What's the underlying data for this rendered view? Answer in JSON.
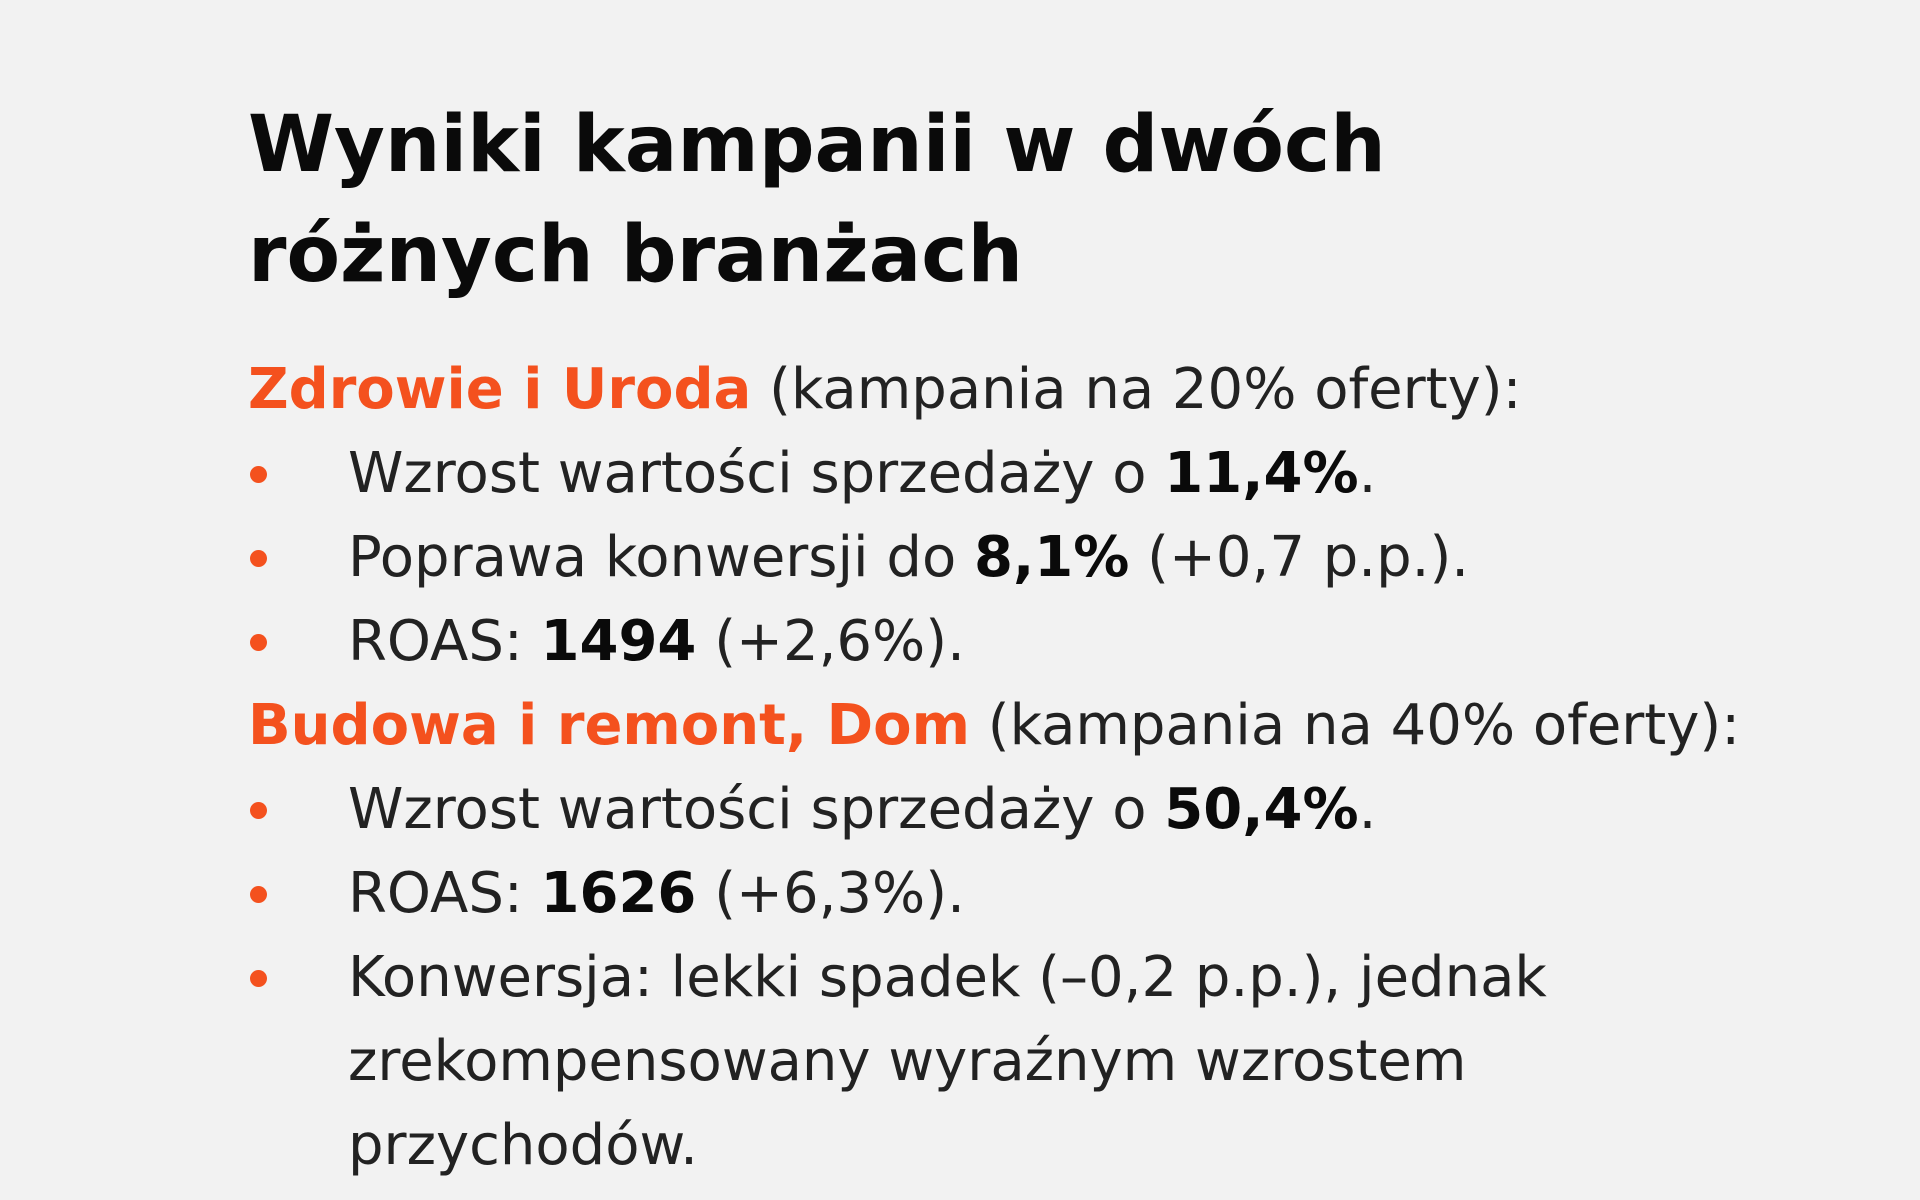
{
  "title": "Wyniki kampanii w dwóch różnych branżach",
  "sections": [
    {
      "name": "Zdrowie i Uroda",
      "note": " (kampania na 20% oferty):",
      "items": [
        {
          "pre": "Wzrost wartości sprzedaży o ",
          "bold": "11,4%",
          "post": "."
        },
        {
          "pre": "Poprawa konwersji do ",
          "bold": "8,1%",
          "post": " (+0,7 p.p.)."
        },
        {
          "pre": "ROAS: ",
          "bold": "1494",
          "post": " (+2,6%)."
        }
      ]
    },
    {
      "name": "Budowa i remont, Dom",
      "note": " (kampania na 40% oferty):",
      "items": [
        {
          "pre": "Wzrost wartości sprzedaży o ",
          "bold": "50,4%",
          "post": "."
        },
        {
          "pre": "ROAS: ",
          "bold": "1626",
          "post": " (+6,3%)."
        },
        {
          "text": "Konwersja: lekki spadek (–0,2 p.p.), jednak zrekompensowany wyraźnym wzrostem przychodów."
        }
      ]
    }
  ],
  "colors": {
    "accent": "#f4511e",
    "background": "#f2f2f2",
    "text": "#222222"
  }
}
